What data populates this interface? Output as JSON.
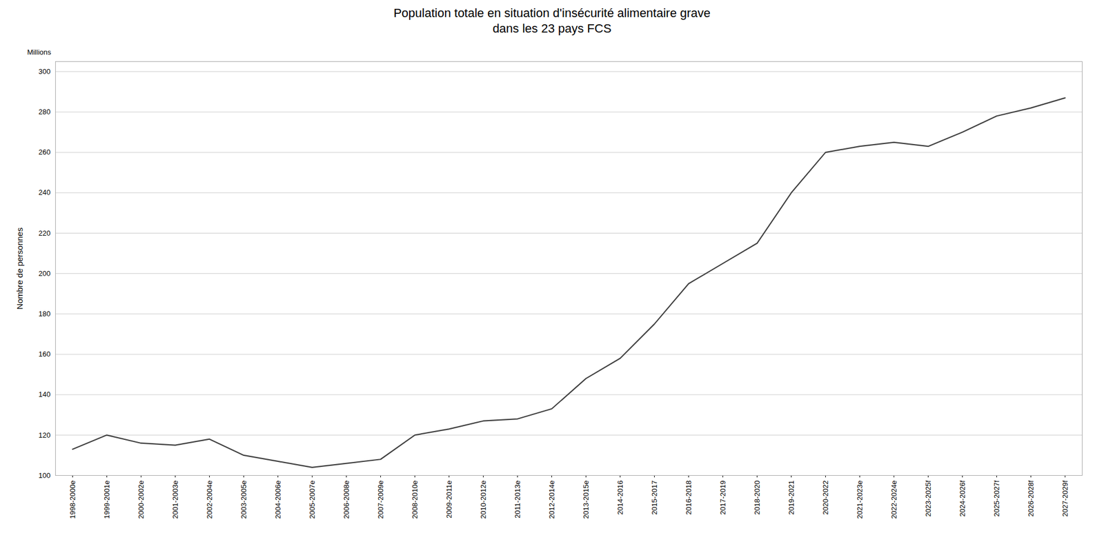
{
  "chart_data": {
    "type": "line",
    "title": "Population totale en situation d'insécurité alimentaire grave\ndans les 23 pays FCS",
    "ylabel": "Nombre de personnes",
    "annotations": [
      "Millions"
    ],
    "categories": [
      "1998-2000e",
      "1999-2001e",
      "2000-2002e",
      "2001-2003e",
      "2002-2004e",
      "2003-2005e",
      "2004-2006e",
      "2005-2007e",
      "2006-2008e",
      "2007-2009e",
      "2008-2010e",
      "2009-2011e",
      "2010-2012e",
      "2011-2013e",
      "2012-2014e",
      "2013-2015e",
      "2014-2016",
      "2015-2017",
      "2016-2018",
      "2017-2019",
      "2018-2020",
      "2019-2021",
      "2020-2022",
      "2021-2023e",
      "2022-2024e",
      "2023-2025f",
      "2024-2026f",
      "2025-2027f",
      "2026-2028f",
      "2027-2029f"
    ],
    "values": [
      113,
      120,
      116,
      115,
      118,
      110,
      107,
      104,
      106,
      108,
      120,
      123,
      127,
      128,
      133,
      148,
      158,
      175,
      195,
      205,
      215,
      240,
      260,
      263,
      265,
      263,
      270,
      278,
      282,
      287
    ],
    "color": "#404040",
    "ylim": [
      100,
      305
    ],
    "yticks": [
      100,
      120,
      140,
      160,
      180,
      200,
      220,
      240,
      260,
      280,
      300
    ],
    "grid": true
  }
}
